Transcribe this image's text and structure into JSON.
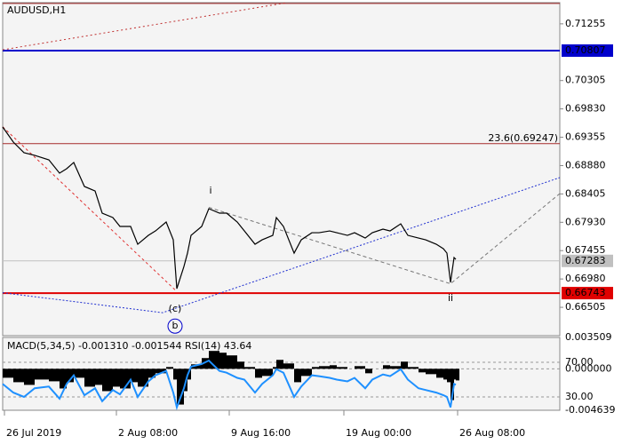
{
  "chart_data": [
    {
      "type": "line",
      "title": "AUDUSD,H1",
      "x": [
        0,
        3,
        6,
        9,
        13,
        16,
        18,
        20,
        23,
        26,
        28,
        31,
        33,
        36,
        38,
        41,
        43,
        46,
        48,
        49,
        51,
        52,
        53,
        56,
        58,
        61,
        63,
        66,
        68,
        71,
        73,
        76,
        77,
        79,
        82,
        84,
        87,
        89,
        92,
        94,
        97,
        99,
        102,
        104,
        107,
        109,
        112,
        114,
        117,
        119,
        122,
        124,
        125,
        126,
        127,
        127.5
      ],
      "series": [
        {
          "color": "#000000",
          "values": [
            0.69527,
            0.69274,
            0.69096,
            0.69051,
            0.68976,
            0.68753,
            0.68828,
            0.68932,
            0.6853,
            0.68455,
            0.68083,
            0.68009,
            0.6786,
            0.6786,
            0.67562,
            0.67711,
            0.67785,
            0.67934,
            0.67636,
            0.66817,
            0.6719,
            0.67413,
            0.67711,
            0.6786,
            0.68158,
            0.68083,
            0.68083,
            0.67934,
            0.67785,
            0.67562,
            0.67636,
            0.67711,
            0.68009,
            0.6786,
            0.67413,
            0.67636,
            0.67755,
            0.67755,
            0.67785,
            0.67755,
            0.67711,
            0.67755,
            0.67666,
            0.67755,
            0.67815,
            0.67785,
            0.67904,
            0.67711,
            0.67666,
            0.67636,
            0.67562,
            0.67487,
            0.67413,
            0.66922,
            0.67339,
            0.67309
          ]
        }
      ],
      "xlim": [
        0,
        156.75
      ],
      "xticks": [
        {
          "value": 0.5,
          "label": "26 Jul 2019"
        },
        {
          "value": 32,
          "label": "2 Aug 08:00"
        },
        {
          "value": 63.75,
          "label": "9 Aug 16:00"
        },
        {
          "value": 96,
          "label": "19 Aug 00:00"
        },
        {
          "value": 128,
          "label": "26 Aug 08:00"
        }
      ],
      "ylim": [
        0.6603,
        0.7161
      ],
      "yticks": [
        0.71255,
        0.70305,
        {
          "value": 0.6983,
          "label": "0.69830"
        },
        0.69355,
        {
          "value": 0.6888,
          "label": "0.68880"
        },
        0.68405,
        {
          "value": 0.6793,
          "label": "0.67930"
        },
        0.67455,
        {
          "value": 0.6698,
          "label": "0.66980"
        },
        0.66505
      ],
      "levels": [
        {
          "value": 0.71597,
          "color": "#a52a2a",
          "tag": false
        },
        {
          "value": 0.70807,
          "color": "#0000cc",
          "tag": true
        },
        {
          "value": 0.69247,
          "color": "#a52a2a",
          "tag": false,
          "label": "23.6(0.69247)"
        },
        {
          "value": 0.67283,
          "color": "#c0c0c0",
          "tag": true
        },
        {
          "value": 0.66743,
          "color": "#e00000",
          "tag": true
        }
      ],
      "lines": [
        {
          "x": [
            0,
            49
          ],
          "y": [
            0.6953,
            0.6677
          ],
          "color": "#e03030",
          "dash": "3,3"
        },
        {
          "x": [
            0,
            45,
            156.75
          ],
          "y": [
            0.6675,
            0.66415,
            0.68679
          ],
          "color": "#2030d0",
          "dash": "2,2"
        },
        {
          "x": [
            58,
            126,
            156.75
          ],
          "y": [
            0.6818,
            0.669,
            0.68411
          ],
          "color": "#777777",
          "dash": "4,3"
        },
        {
          "x": [
            0,
            80
          ],
          "y": [
            0.7082,
            0.7161
          ],
          "color": "#c03030",
          "dash": "2,3"
        }
      ],
      "annotations": [
        {
          "text": "i",
          "x": 58.5,
          "y": 0.68455,
          "color": "#666666",
          "circle": false
        },
        {
          "text": "ii",
          "x": 126,
          "y": 0.66653,
          "color": "#666666",
          "circle": false
        },
        {
          "text": "(c)",
          "x": 48.5,
          "y": 0.66475,
          "color": "#e00000",
          "circle": false
        },
        {
          "text": "b",
          "x": 48.5,
          "y": 0.6619,
          "color": "#0000cc",
          "circle": true
        }
      ]
    },
    {
      "type": "bar",
      "title": "MACD(5,34,5) -0.001310 -0.001544 RSI(14) 43.64",
      "x": [
        0,
        3,
        6,
        9,
        13,
        16,
        18,
        20,
        23,
        26,
        28,
        31,
        33,
        36,
        38,
        41,
        43,
        46,
        48,
        49,
        51,
        52,
        53,
        56,
        58,
        61,
        63,
        66,
        68,
        71,
        73,
        76,
        77,
        79,
        82,
        84,
        87,
        89,
        92,
        94,
        97,
        99,
        102,
        104,
        107,
        109,
        112,
        114,
        117,
        119,
        122,
        124,
        125,
        126,
        127,
        127.5
      ],
      "series": [
        {
          "color": "#000000",
          "values": [
            -0.001,
            -0.0015,
            -0.0018,
            -0.0012,
            -0.0014,
            -0.0022,
            -0.0015,
            -0.001,
            -0.002,
            -0.0018,
            -0.0025,
            -0.002,
            -0.0022,
            -0.0015,
            -0.002,
            -0.001,
            -0.0005,
            0.0002,
            -0.0012,
            -0.004,
            -0.0025,
            -0.0012,
            0.0005,
            0.0012,
            0.002,
            0.0018,
            0.0015,
            0.0008,
            0.0002,
            -0.001,
            -0.0008,
            0.0002,
            0.001,
            0.0006,
            -0.0015,
            -0.0008,
            0.0002,
            0.0003,
            0.0004,
            0.0002,
            0,
            0.0003,
            -0.0005,
            0,
            0.0004,
            0.0003,
            0.0008,
            0.0002,
            -0.0004,
            -0.0006,
            -0.001,
            -0.0012,
            -0.0015,
            -0.0035,
            -0.0012,
            -0.0013
          ]
        },
        {
          "color": "#1e90ff",
          "axis": "y2",
          "values": [
            45,
            35,
            30,
            40,
            42,
            28,
            45,
            55,
            32,
            40,
            25,
            38,
            33,
            50,
            30,
            48,
            55,
            60,
            35,
            18,
            40,
            55,
            65,
            68,
            72,
            60,
            58,
            52,
            50,
            35,
            45,
            55,
            62,
            58,
            30,
            42,
            55,
            54,
            52,
            50,
            48,
            52,
            40,
            50,
            56,
            54,
            62,
            50,
            40,
            38,
            35,
            32,
            30,
            18,
            45,
            44
          ]
        }
      ],
      "ylim": [
        -0.004639,
        0.003509
      ],
      "yticks": [
        0.003509,
        {
          "value": 0,
          "label": "0.000000"
        },
        -0.004639
      ],
      "y2lim": [
        14.6,
        98.7
      ],
      "y2ticks": [
        {
          "value": 70,
          "label": "70.00"
        },
        {
          "value": 30,
          "label": "30.00"
        }
      ]
    }
  ]
}
